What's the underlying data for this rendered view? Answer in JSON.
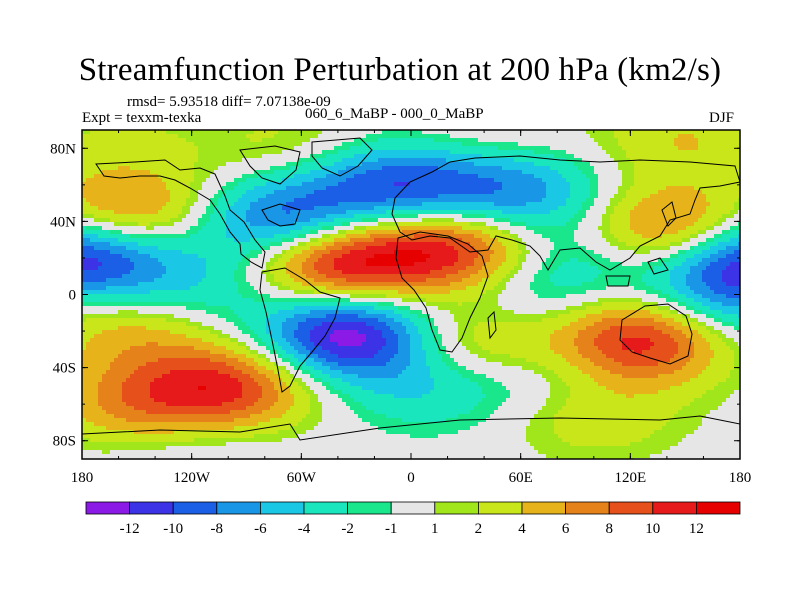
{
  "chart_data": {
    "type": "heatmap",
    "title": "Streamfunction Perturbation at 200 hPa (km2/s)",
    "stats_line": "rmsd= 5.93518 diff= 7.07138e-09",
    "left_label": "Expt = texxm-texka",
    "center_label": "060_6_MaBP - 000_0_MaBP",
    "right_label": "DJF",
    "x_ticks": [
      "180",
      "120W",
      "60W",
      "0",
      "60E",
      "120E",
      "180"
    ],
    "x_tick_lons": [
      -180,
      -120,
      -60,
      0,
      60,
      120,
      180
    ],
    "y_ticks": [
      "80N",
      "40N",
      "0",
      "40S",
      "80S"
    ],
    "y_tick_lats": [
      80,
      40,
      0,
      -40,
      -80
    ],
    "xlim": [
      -180,
      180
    ],
    "ylim": [
      -90,
      90
    ],
    "colorbar": {
      "labels": [
        "-12",
        "-10",
        "-8",
        "-6",
        "-4",
        "-2",
        "-1",
        "1",
        "2",
        "4",
        "6",
        "8",
        "10",
        "12"
      ],
      "levels": [
        -12,
        -10,
        -8,
        -6,
        -4,
        -2,
        -1,
        1,
        2,
        4,
        6,
        8,
        10,
        12
      ],
      "colors": [
        "#8c1ae6",
        "#3c32e6",
        "#1a5fe6",
        "#1a96e6",
        "#1ac8e6",
        "#1ae6be",
        "#1ae68c",
        "#e6e6e6",
        "#a0e61a",
        "#c8e61a",
        "#e6b41a",
        "#e6821a",
        "#e6501a",
        "#e61a1a",
        "#e60000"
      ]
    },
    "field_centers": [
      {
        "lon": -40,
        "lat": 18,
        "amp": 13
      },
      {
        "lon": 25,
        "lat": 25,
        "amp": 11
      },
      {
        "lon": -35,
        "lat": -22,
        "amp": -14
      },
      {
        "lon": 125,
        "lat": -25,
        "amp": 12
      },
      {
        "lon": 145,
        "lat": 35,
        "amp": 10
      },
      {
        "lon": 180,
        "lat": 20,
        "amp": -12
      },
      {
        "lon": -180,
        "lat": 20,
        "amp": -12
      },
      {
        "lon": -70,
        "lat": 40,
        "amp": -10
      },
      {
        "lon": -155,
        "lat": 45,
        "amp": 8
      },
      {
        "lon": -100,
        "lat": -50,
        "amp": 10
      },
      {
        "lon": -155,
        "lat": -18,
        "amp": 5
      },
      {
        "lon": -150,
        "lat": -60,
        "amp": 6
      },
      {
        "lon": 35,
        "lat": -25,
        "amp": 6
      },
      {
        "lon": 100,
        "lat": -65,
        "amp": 4
      },
      {
        "lon": -20,
        "lat": 60,
        "amp": -6
      },
      {
        "lon": 60,
        "lat": 55,
        "amp": -7
      },
      {
        "lon": 10,
        "lat": 60,
        "amp": -5
      },
      {
        "lon": 85,
        "lat": 18,
        "amp": -4
      },
      {
        "lon": 60,
        "lat": -5,
        "amp": -3
      },
      {
        "lon": 170,
        "lat": -5,
        "amp": -5
      },
      {
        "lon": -120,
        "lat": 5,
        "amp": -4
      },
      {
        "lon": 80,
        "lat": -45,
        "amp": -3
      },
      {
        "lon": 10,
        "lat": -50,
        "amp": -4
      },
      {
        "lon": -65,
        "lat": 80,
        "amp": 3
      },
      {
        "lon": 150,
        "lat": 85,
        "amp": 4
      },
      {
        "lon": 40,
        "lat": 85,
        "amp": 2
      },
      {
        "lon": -120,
        "lat": -85,
        "amp": -2
      },
      {
        "lon": -160,
        "lat": 85,
        "amp": 2
      }
    ]
  }
}
